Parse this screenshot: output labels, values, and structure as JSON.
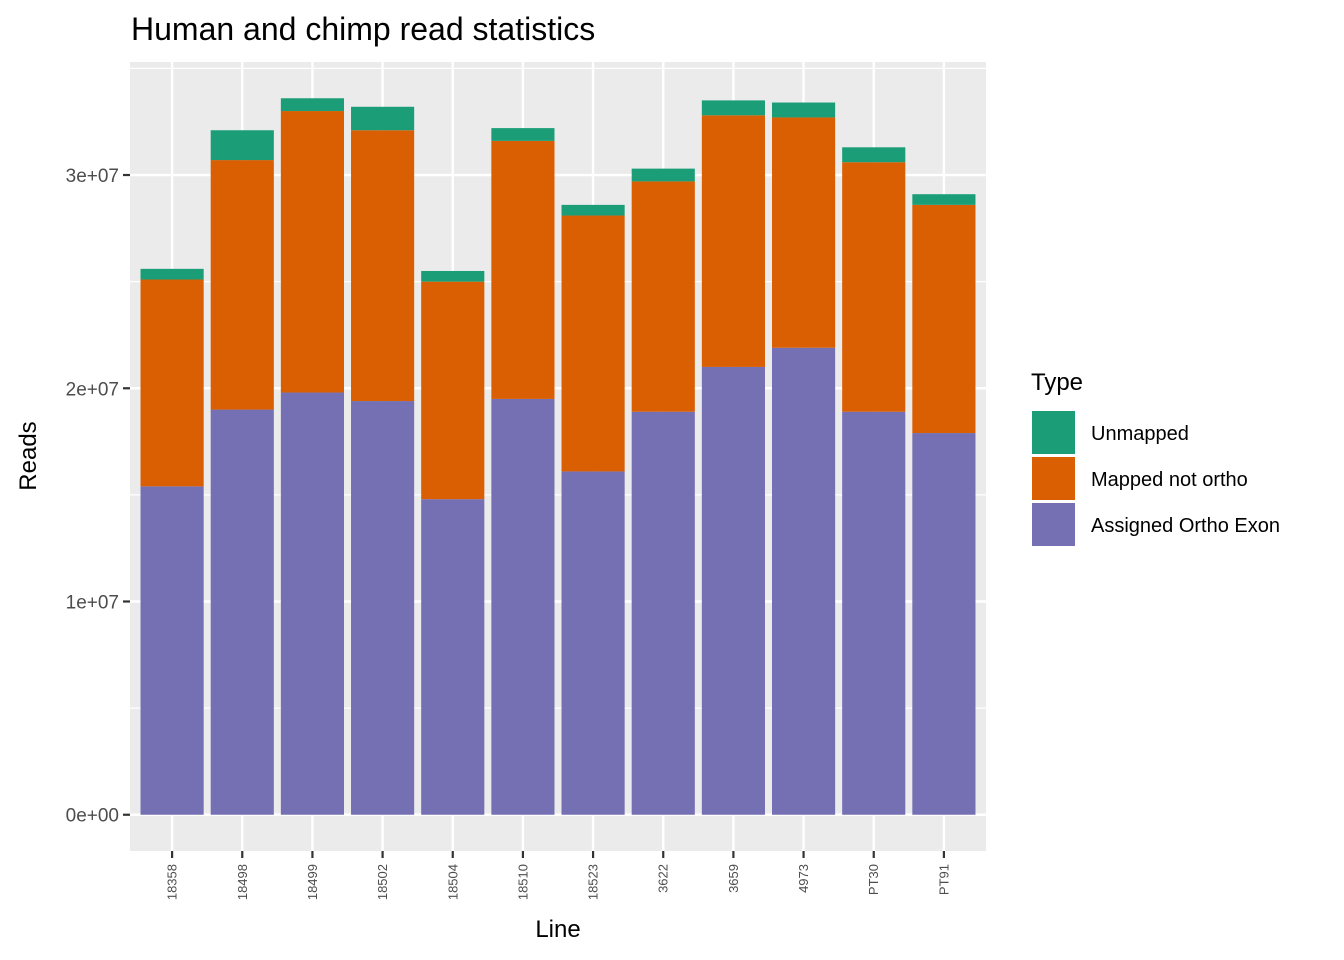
{
  "chart_data": {
    "type": "bar",
    "stacked": true,
    "title": "Human and chimp read statistics",
    "xlabel": "Line",
    "ylabel": "Reads",
    "ylim": [
      -1700000,
      35300000
    ],
    "yticks": [
      0,
      10000000,
      20000000,
      30000000
    ],
    "ytick_labels": [
      "0e+00",
      "1e+07",
      "2e+07",
      "3e+07"
    ],
    "grid": true,
    "legend": {
      "title": "Type",
      "position": "right"
    },
    "categories": [
      "18358",
      "18498",
      "18499",
      "18502",
      "18504",
      "18510",
      "18523",
      "3622",
      "3659",
      "4973",
      "PT30",
      "PT91"
    ],
    "series": [
      {
        "name": "Assigned Ortho Exon",
        "color": "#7570B3",
        "values": [
          15400000,
          19000000,
          19800000,
          19400000,
          14800000,
          19500000,
          16100000,
          18900000,
          21000000,
          21900000,
          18900000,
          17900000
        ]
      },
      {
        "name": "Mapped not ortho",
        "color": "#D95F02",
        "values": [
          9700000,
          11700000,
          13200000,
          12700000,
          10200000,
          12100000,
          12000000,
          10800000,
          11800000,
          10800000,
          11700000,
          10700000
        ]
      },
      {
        "name": "Unmapped",
        "color": "#1B9E77",
        "values": [
          500000,
          1400000,
          600000,
          1100000,
          500000,
          600000,
          500000,
          600000,
          700000,
          700000,
          700000,
          500000
        ]
      }
    ],
    "legend_order": [
      "Unmapped",
      "Mapped not ortho",
      "Assigned Ortho Exon"
    ]
  }
}
